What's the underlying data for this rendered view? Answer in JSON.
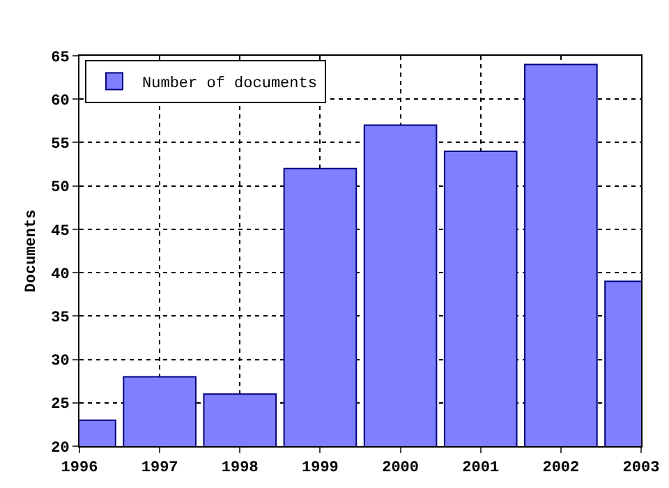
{
  "chart_data": {
    "type": "bar",
    "ylabel": "Documents",
    "x": [
      1996,
      1997,
      1998,
      1999,
      2000,
      2001,
      2002,
      2003
    ],
    "series": [
      {
        "name": "Number of documents",
        "color": "#8080ff",
        "values": [
          23,
          28,
          26,
          52,
          57,
          54,
          64,
          39
        ]
      }
    ],
    "xlim": [
      1996,
      2003
    ],
    "xticks": [
      1996,
      1997,
      1998,
      1999,
      2000,
      2001,
      2002,
      2003
    ],
    "ylim": [
      20,
      65
    ],
    "yticks": [
      20,
      25,
      30,
      35,
      40,
      45,
      50,
      55,
      60,
      65
    ],
    "grid": true,
    "legend": "top left"
  }
}
